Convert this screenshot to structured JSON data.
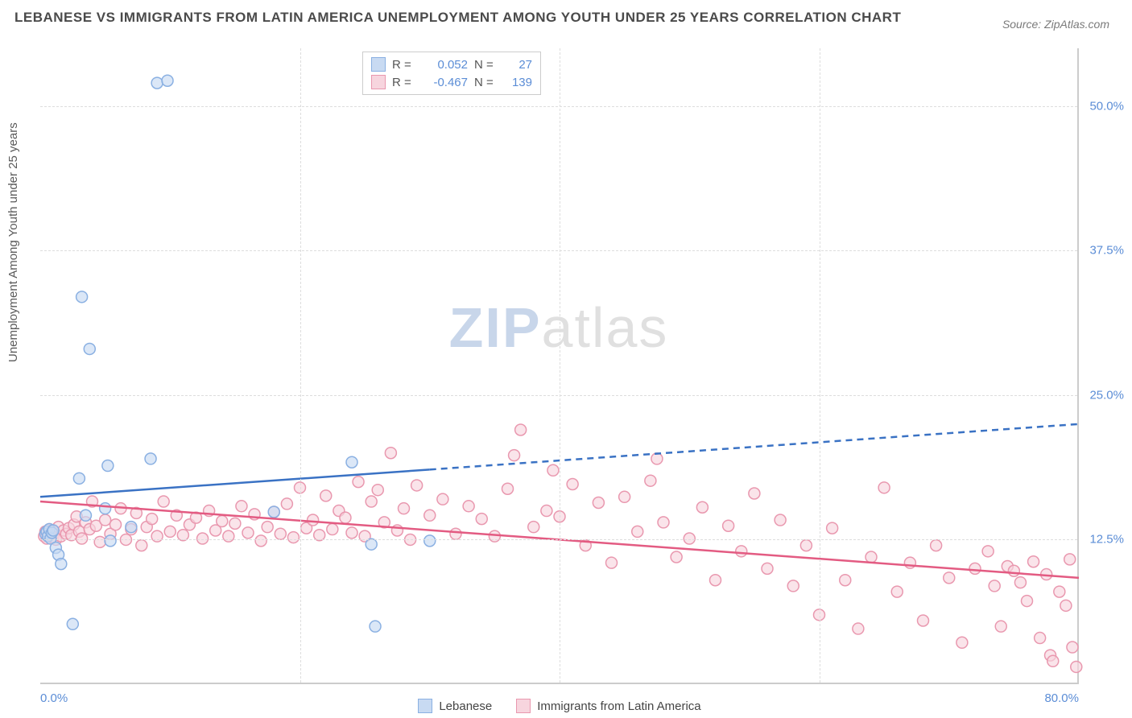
{
  "title": "LEBANESE VS IMMIGRANTS FROM LATIN AMERICA UNEMPLOYMENT AMONG YOUTH UNDER 25 YEARS CORRELATION CHART",
  "source": "Source: ZipAtlas.com",
  "y_axis_label": "Unemployment Among Youth under 25 years",
  "watermark": {
    "zip": "ZIP",
    "atlas": "atlas"
  },
  "chart": {
    "type": "scatter",
    "xlim": [
      0,
      80
    ],
    "ylim": [
      0,
      55
    ],
    "x_ticks": [
      0,
      20,
      40,
      60,
      80
    ],
    "x_tick_labels": [
      "0.0%",
      "",
      "",
      "",
      "80.0%"
    ],
    "y_ticks": [
      12.5,
      25.0,
      37.5,
      50.0
    ],
    "y_tick_labels": [
      "12.5%",
      "25.0%",
      "37.5%",
      "50.0%"
    ],
    "background_color": "#ffffff",
    "grid_color": "#dddddd",
    "marker_radius": 7,
    "marker_stroke_width": 1.5,
    "trend_line_width": 2.5,
    "series": [
      {
        "name": "Lebanese",
        "fill": "#c8daf2",
        "stroke": "#8ab0e2",
        "R": "0.052",
        "N": "27",
        "trend": {
          "x1": 0,
          "y1": 16.2,
          "x2": 80,
          "y2": 22.5,
          "solid_until_x": 30,
          "color": "#3a72c4"
        },
        "points": [
          [
            0.4,
            13.0
          ],
          [
            0.5,
            13.2
          ],
          [
            0.6,
            12.8
          ],
          [
            0.7,
            13.4
          ],
          [
            0.8,
            12.6
          ],
          [
            0.9,
            13.1
          ],
          [
            1.0,
            13.3
          ],
          [
            1.2,
            11.8
          ],
          [
            1.4,
            11.2
          ],
          [
            1.6,
            10.4
          ],
          [
            2.5,
            5.2
          ],
          [
            3.0,
            17.8
          ],
          [
            3.2,
            33.5
          ],
          [
            3.5,
            14.6
          ],
          [
            3.8,
            29.0
          ],
          [
            5.0,
            15.2
          ],
          [
            5.2,
            18.9
          ],
          [
            5.4,
            12.4
          ],
          [
            7.0,
            13.6
          ],
          [
            8.5,
            19.5
          ],
          [
            9.0,
            52.0
          ],
          [
            9.8,
            52.2
          ],
          [
            18.0,
            14.9
          ],
          [
            24.0,
            19.2
          ],
          [
            25.5,
            12.1
          ],
          [
            25.8,
            5.0
          ],
          [
            30.0,
            12.4
          ]
        ]
      },
      {
        "name": "Immigrants from Latin America",
        "fill": "#f7d5de",
        "stroke": "#e998af",
        "R": "-0.467",
        "N": "139",
        "trend": {
          "x1": 0,
          "y1": 15.8,
          "x2": 80,
          "y2": 9.2,
          "solid_until_x": 80,
          "color": "#e35b82"
        },
        "points": [
          [
            0.3,
            12.8
          ],
          [
            0.4,
            13.2
          ],
          [
            0.5,
            12.6
          ],
          [
            0.6,
            13.0
          ],
          [
            0.7,
            13.4
          ],
          [
            0.8,
            12.9
          ],
          [
            0.9,
            13.3
          ],
          [
            1.0,
            12.7
          ],
          [
            1.1,
            13.1
          ],
          [
            1.2,
            12.5
          ],
          [
            1.4,
            13.6
          ],
          [
            1.6,
            12.8
          ],
          [
            1.8,
            13.3
          ],
          [
            2.0,
            13.0
          ],
          [
            2.2,
            13.5
          ],
          [
            2.4,
            12.9
          ],
          [
            2.6,
            13.8
          ],
          [
            2.8,
            14.5
          ],
          [
            3.0,
            13.2
          ],
          [
            3.2,
            12.6
          ],
          [
            3.5,
            14.0
          ],
          [
            3.8,
            13.4
          ],
          [
            4.0,
            15.8
          ],
          [
            4.3,
            13.7
          ],
          [
            4.6,
            12.3
          ],
          [
            5.0,
            14.2
          ],
          [
            5.4,
            13.0
          ],
          [
            5.8,
            13.8
          ],
          [
            6.2,
            15.2
          ],
          [
            6.6,
            12.5
          ],
          [
            7.0,
            13.4
          ],
          [
            7.4,
            14.8
          ],
          [
            7.8,
            12.0
          ],
          [
            8.2,
            13.6
          ],
          [
            8.6,
            14.3
          ],
          [
            9.0,
            12.8
          ],
          [
            9.5,
            15.8
          ],
          [
            10.0,
            13.2
          ],
          [
            10.5,
            14.6
          ],
          [
            11.0,
            12.9
          ],
          [
            11.5,
            13.8
          ],
          [
            12.0,
            14.4
          ],
          [
            12.5,
            12.6
          ],
          [
            13.0,
            15.0
          ],
          [
            13.5,
            13.3
          ],
          [
            14.0,
            14.1
          ],
          [
            14.5,
            12.8
          ],
          [
            15.0,
            13.9
          ],
          [
            15.5,
            15.4
          ],
          [
            16.0,
            13.1
          ],
          [
            16.5,
            14.7
          ],
          [
            17.0,
            12.4
          ],
          [
            17.5,
            13.6
          ],
          [
            18.0,
            14.9
          ],
          [
            18.5,
            13.0
          ],
          [
            19.0,
            15.6
          ],
          [
            19.5,
            12.7
          ],
          [
            20.0,
            17.0
          ],
          [
            20.5,
            13.5
          ],
          [
            21.0,
            14.2
          ],
          [
            21.5,
            12.9
          ],
          [
            22.0,
            16.3
          ],
          [
            22.5,
            13.4
          ],
          [
            23.0,
            15.0
          ],
          [
            23.5,
            14.4
          ],
          [
            24.0,
            13.1
          ],
          [
            24.5,
            17.5
          ],
          [
            25.0,
            12.8
          ],
          [
            25.5,
            15.8
          ],
          [
            26.0,
            16.8
          ],
          [
            26.5,
            14.0
          ],
          [
            27.0,
            20.0
          ],
          [
            27.5,
            13.3
          ],
          [
            28.0,
            15.2
          ],
          [
            28.5,
            12.5
          ],
          [
            29.0,
            17.2
          ],
          [
            30.0,
            14.6
          ],
          [
            31.0,
            16.0
          ],
          [
            32.0,
            13.0
          ],
          [
            33.0,
            15.4
          ],
          [
            34.0,
            14.3
          ],
          [
            35.0,
            12.8
          ],
          [
            36.0,
            16.9
          ],
          [
            36.5,
            19.8
          ],
          [
            37.0,
            22.0
          ],
          [
            38.0,
            13.6
          ],
          [
            39.0,
            15.0
          ],
          [
            39.5,
            18.5
          ],
          [
            40.0,
            14.5
          ],
          [
            41.0,
            17.3
          ],
          [
            42.0,
            12.0
          ],
          [
            43.0,
            15.7
          ],
          [
            44.0,
            10.5
          ],
          [
            45.0,
            16.2
          ],
          [
            46.0,
            13.2
          ],
          [
            47.0,
            17.6
          ],
          [
            47.5,
            19.5
          ],
          [
            48.0,
            14.0
          ],
          [
            49.0,
            11.0
          ],
          [
            50.0,
            12.6
          ],
          [
            51.0,
            15.3
          ],
          [
            52.0,
            9.0
          ],
          [
            53.0,
            13.7
          ],
          [
            54.0,
            11.5
          ],
          [
            55.0,
            16.5
          ],
          [
            56.0,
            10.0
          ],
          [
            57.0,
            14.2
          ],
          [
            58.0,
            8.5
          ],
          [
            59.0,
            12.0
          ],
          [
            60.0,
            6.0
          ],
          [
            61.0,
            13.5
          ],
          [
            62.0,
            9.0
          ],
          [
            63.0,
            4.8
          ],
          [
            64.0,
            11.0
          ],
          [
            65.0,
            17.0
          ],
          [
            66.0,
            8.0
          ],
          [
            67.0,
            10.5
          ],
          [
            68.0,
            5.5
          ],
          [
            69.0,
            12.0
          ],
          [
            70.0,
            9.2
          ],
          [
            71.0,
            3.6
          ],
          [
            72.0,
            10.0
          ],
          [
            73.0,
            11.5
          ],
          [
            73.5,
            8.5
          ],
          [
            74.0,
            5.0
          ],
          [
            74.5,
            10.2
          ],
          [
            75.0,
            9.8
          ],
          [
            75.5,
            8.8
          ],
          [
            76.0,
            7.2
          ],
          [
            76.5,
            10.6
          ],
          [
            77.0,
            4.0
          ],
          [
            77.5,
            9.5
          ],
          [
            77.8,
            2.5
          ],
          [
            78.0,
            2.0
          ],
          [
            78.5,
            8.0
          ],
          [
            79.0,
            6.8
          ],
          [
            79.3,
            10.8
          ],
          [
            79.5,
            3.2
          ],
          [
            79.8,
            1.5
          ]
        ]
      }
    ]
  },
  "legend_bottom": [
    {
      "label": "Lebanese",
      "fill": "#c8daf2",
      "stroke": "#8ab0e2"
    },
    {
      "label": "Immigrants from Latin America",
      "fill": "#f7d5de",
      "stroke": "#e998af"
    }
  ],
  "legend_top_labels": {
    "R": "R =",
    "N": "N ="
  }
}
